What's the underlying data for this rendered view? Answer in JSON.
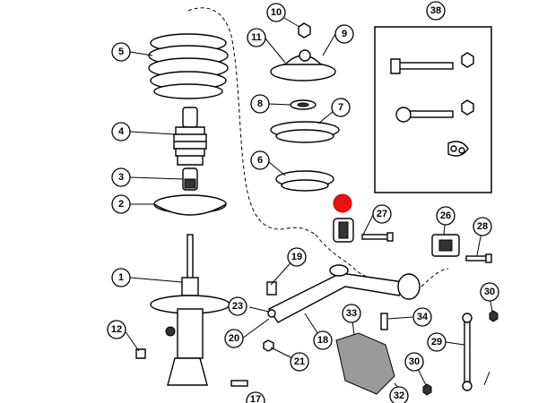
{
  "diagram": {
    "callouts": [
      "1",
      "2",
      "3",
      "4",
      "5",
      "6",
      "7",
      "8",
      "9",
      "10",
      "11",
      "12",
      "17",
      "18",
      "19",
      "20",
      "21",
      "23",
      "26",
      "27",
      "28",
      "29",
      "30",
      "30b",
      "32",
      "33",
      "34",
      "38"
    ],
    "labels": {
      "c1": "1",
      "c2": "2",
      "c3": "3",
      "c4": "4",
      "c5": "5",
      "c6": "6",
      "c7": "7",
      "c8": "8",
      "c9": "9",
      "c10": "10",
      "c11": "11",
      "c12": "12",
      "c17": "17",
      "c18": "18",
      "c19": "19",
      "c20": "20",
      "c21": "21",
      "c23": "23",
      "c26": "26",
      "c27": "27",
      "c28": "28",
      "c29": "29",
      "c30": "30",
      "c30b": "30",
      "c32": "32",
      "c33": "33",
      "c34": "34",
      "c38": "38"
    },
    "marker_color": "#e11111"
  }
}
